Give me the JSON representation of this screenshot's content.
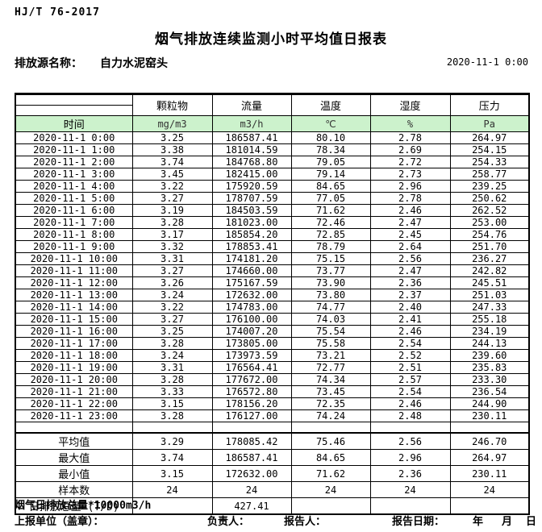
{
  "header": {
    "standard": "HJ/T  76-2017",
    "title": "烟气排放连续监测小时平均值日报表",
    "source_label": "排放源名称：",
    "source_name": "自力水泥窑头",
    "datetime": "2020-11-1 0:00"
  },
  "table": {
    "time_header": "时间",
    "pollutant_headers": [
      "颗粒物",
      "流量",
      "温度",
      "湿度",
      "压力"
    ],
    "units": [
      "mg/m3",
      "m3/h",
      "℃",
      "%",
      "Pa"
    ],
    "rows": [
      [
        "2020-11-1 0:00",
        "3.25",
        "186587.41",
        "80.10",
        "2.78",
        "264.97"
      ],
      [
        "2020-11-1 1:00",
        "3.38",
        "181014.59",
        "78.34",
        "2.69",
        "254.15"
      ],
      [
        "2020-11-1 2:00",
        "3.74",
        "184768.80",
        "79.05",
        "2.72",
        "254.33"
      ],
      [
        "2020-11-1 3:00",
        "3.45",
        "182415.00",
        "79.14",
        "2.73",
        "258.77"
      ],
      [
        "2020-11-1 4:00",
        "3.22",
        "175920.59",
        "84.65",
        "2.96",
        "239.25"
      ],
      [
        "2020-11-1 5:00",
        "3.27",
        "178707.59",
        "77.05",
        "2.78",
        "250.62"
      ],
      [
        "2020-11-1 6:00",
        "3.19",
        "184503.59",
        "71.62",
        "2.46",
        "262.52"
      ],
      [
        "2020-11-1 7:00",
        "3.28",
        "181023.00",
        "72.46",
        "2.47",
        "253.00"
      ],
      [
        "2020-11-1 8:00",
        "3.17",
        "185854.20",
        "72.85",
        "2.45",
        "254.76"
      ],
      [
        "2020-11-1 9:00",
        "3.32",
        "178853.41",
        "78.79",
        "2.64",
        "251.70"
      ],
      [
        "2020-11-1 10:00",
        "3.31",
        "174181.20",
        "75.15",
        "2.56",
        "236.27"
      ],
      [
        "2020-11-1 11:00",
        "3.27",
        "174660.00",
        "73.77",
        "2.47",
        "242.82"
      ],
      [
        "2020-11-1 12:00",
        "3.26",
        "175167.59",
        "73.90",
        "2.36",
        "245.51"
      ],
      [
        "2020-11-1 13:00",
        "3.24",
        "172632.00",
        "73.80",
        "2.37",
        "251.03"
      ],
      [
        "2020-11-1 14:00",
        "3.22",
        "174783.00",
        "74.77",
        "2.40",
        "247.33"
      ],
      [
        "2020-11-1 15:00",
        "3.27",
        "176100.00",
        "74.03",
        "2.41",
        "255.18"
      ],
      [
        "2020-11-1 16:00",
        "3.25",
        "174007.20",
        "75.54",
        "2.46",
        "234.19"
      ],
      [
        "2020-11-1 17:00",
        "3.28",
        "173805.00",
        "75.58",
        "2.54",
        "244.13"
      ],
      [
        "2020-11-1 18:00",
        "3.24",
        "173973.59",
        "73.21",
        "2.52",
        "239.60"
      ],
      [
        "2020-11-1 19:00",
        "3.31",
        "176564.41",
        "72.77",
        "2.51",
        "235.83"
      ],
      [
        "2020-11-1 20:00",
        "3.28",
        "177672.00",
        "74.34",
        "2.57",
        "233.30"
      ],
      [
        "2020-11-1 21:00",
        "3.33",
        "176572.80",
        "73.45",
        "2.54",
        "236.54"
      ],
      [
        "2020-11-1 22:00",
        "3.15",
        "178156.20",
        "72.35",
        "2.46",
        "244.90"
      ],
      [
        "2020-11-1 23:00",
        "3.28",
        "176127.00",
        "74.24",
        "2.48",
        "230.11"
      ]
    ],
    "summary": [
      [
        "平均值",
        "3.29",
        "178085.42",
        "75.46",
        "2.56",
        "246.70"
      ],
      [
        "最大值",
        "3.74",
        "186587.41",
        "84.65",
        "2.96",
        "264.97"
      ],
      [
        "最小值",
        "3.15",
        "172632.00",
        "71.62",
        "2.36",
        "230.11"
      ],
      [
        "样本数",
        "24",
        "24",
        "24",
        "24",
        "24"
      ],
      [
        "日排放总量 (T/D)",
        "",
        "427.41",
        "",
        "",
        ""
      ]
    ]
  },
  "footer": {
    "note": "烟气日排放总量*10000m3/h",
    "unit_label": "上报单位（盖章）：",
    "responsible_label": "负责人：",
    "reporter_label": "报告人：",
    "report_date_label": "报告日期：",
    "year_label": "年",
    "month_label": "月",
    "day_label": "日"
  },
  "colors": {
    "unit_row_bg": "#CCF2CC",
    "border": "#000000"
  }
}
